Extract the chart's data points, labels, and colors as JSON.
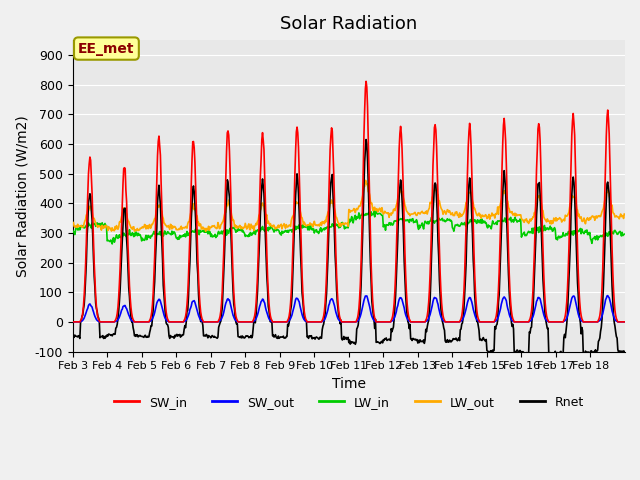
{
  "title": "Solar Radiation",
  "xlabel": "Time",
  "ylabel": "Solar Radiation (W/m2)",
  "ylim": [
    -100,
    950
  ],
  "yticks": [
    -100,
    0,
    100,
    200,
    300,
    400,
    500,
    600,
    700,
    800,
    900
  ],
  "xtick_labels": [
    "Feb 3",
    "Feb 4",
    "Feb 5",
    "Feb 6",
    "Feb 7",
    "Feb 8",
    "Feb 9",
    "Feb 10",
    "Feb 11",
    "Feb 12",
    "Feb 13",
    "Feb 14",
    "Feb 15",
    "Feb 16",
    "Feb 17",
    "Feb 18"
  ],
  "colors": {
    "SW_in": "#ff0000",
    "SW_out": "#0000ff",
    "LW_in": "#00cc00",
    "LW_out": "#ffaa00",
    "Rnet": "#000000"
  },
  "annotation_text": "EE_met",
  "background_color": "#e8e8e8",
  "grid_color": "#ffffff",
  "n_days": 16,
  "points_per_day": 48,
  "SW_in_peaks": [
    560,
    520,
    620,
    610,
    650,
    640,
    650,
    650,
    810,
    660,
    670,
    660,
    680,
    670,
    700,
    710
  ],
  "SW_out_peaks": [
    60,
    55,
    75,
    72,
    78,
    76,
    80,
    78,
    90,
    82,
    83,
    82,
    85,
    82,
    88,
    90
  ],
  "LW_in_base": [
    315,
    280,
    285,
    290,
    295,
    300,
    305,
    310,
    350,
    330,
    330,
    325,
    330,
    300,
    290,
    285
  ],
  "LW_out_base": [
    320,
    315,
    320,
    315,
    320,
    320,
    325,
    330,
    375,
    365,
    370,
    360,
    360,
    340,
    345,
    355
  ],
  "Rnet_night": [
    -50,
    -45,
    -50,
    -45,
    -50,
    -50,
    -52,
    -55,
    -70,
    -60,
    -65,
    -60,
    -100,
    -105,
    -105,
    -100
  ]
}
